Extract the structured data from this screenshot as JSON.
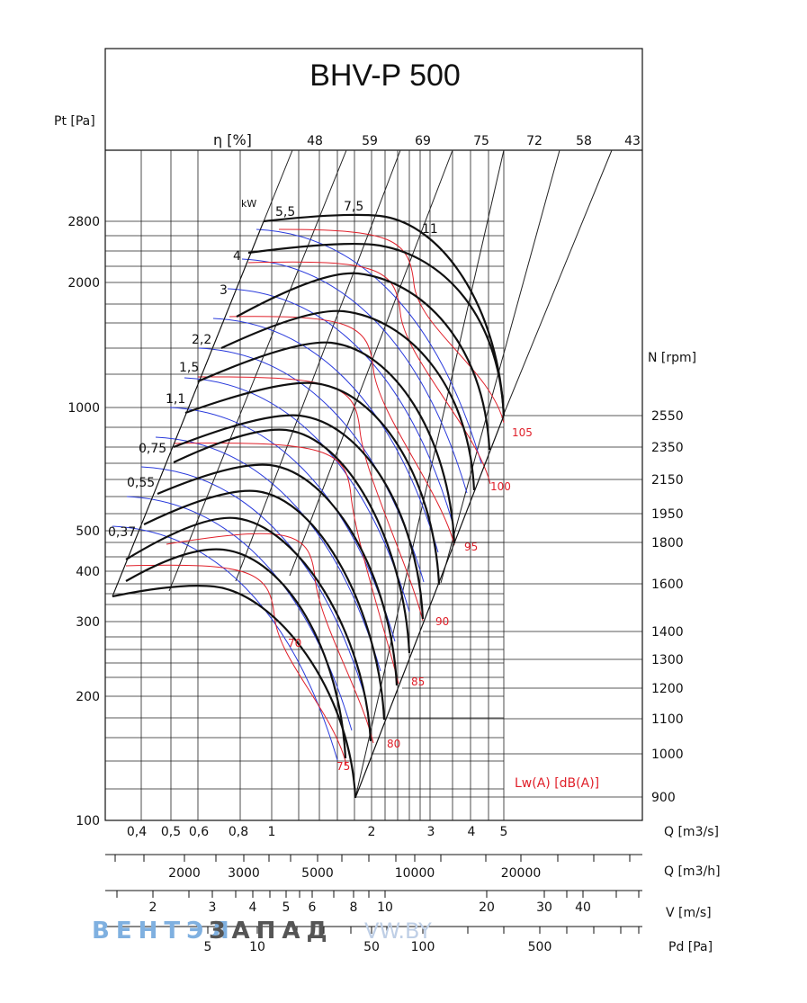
{
  "chart_data": {
    "type": "line",
    "title": "BHV-P 500",
    "ylabel": "Pt [Pa]",
    "eta_label": "η [%]",
    "kw_unit": "kW",
    "rpm_label": "N [rpm]",
    "lw_label": "Lw(A) [dB(A)]",
    "y_scale": "log",
    "ylim": [
      100,
      4000
    ],
    "y_ticks": [
      "100",
      "200",
      "300",
      "400",
      "500",
      "1000",
      "2000",
      "2800"
    ],
    "eta_values": [
      "48",
      "59",
      "69",
      "75",
      "72",
      "58",
      "43"
    ],
    "kw_values": [
      "0,37",
      "0,55",
      "0,75",
      "1,1",
      "1,5",
      "2,2",
      "3",
      "4",
      "5,5",
      "7,5",
      "11"
    ],
    "rpm_values": [
      "2550",
      "2350",
      "2150",
      "1950",
      "1800",
      "1600",
      "1400",
      "1300",
      "1200",
      "1100",
      "1000",
      "900"
    ],
    "lw_values": [
      "105",
      "100",
      "95",
      "90",
      "85",
      "80",
      "75",
      "70"
    ],
    "x_axes": [
      {
        "label": "Q [m3/s]",
        "ticks": [
          "0,4",
          "0,5",
          "0,6",
          "0,8",
          "1",
          "2",
          "3",
          "4",
          "5"
        ]
      },
      {
        "label": "Q [m3/h]",
        "ticks": [
          "2000",
          "3000",
          "5000",
          "10000",
          "20000"
        ]
      },
      {
        "label": "V [m/s]",
        "ticks": [
          "2",
          "3",
          "4",
          "5",
          "6",
          "8",
          "10",
          "20",
          "30",
          "40"
        ]
      },
      {
        "label": "Pd [Pa]",
        "ticks": [
          "5",
          "10",
          "50",
          "100",
          "500"
        ]
      }
    ],
    "grid": true
  },
  "watermark": {
    "brand_left": "ВЕНТЭЛ",
    "brand_right": "ЗАПАД",
    "url": "VW.BY"
  }
}
